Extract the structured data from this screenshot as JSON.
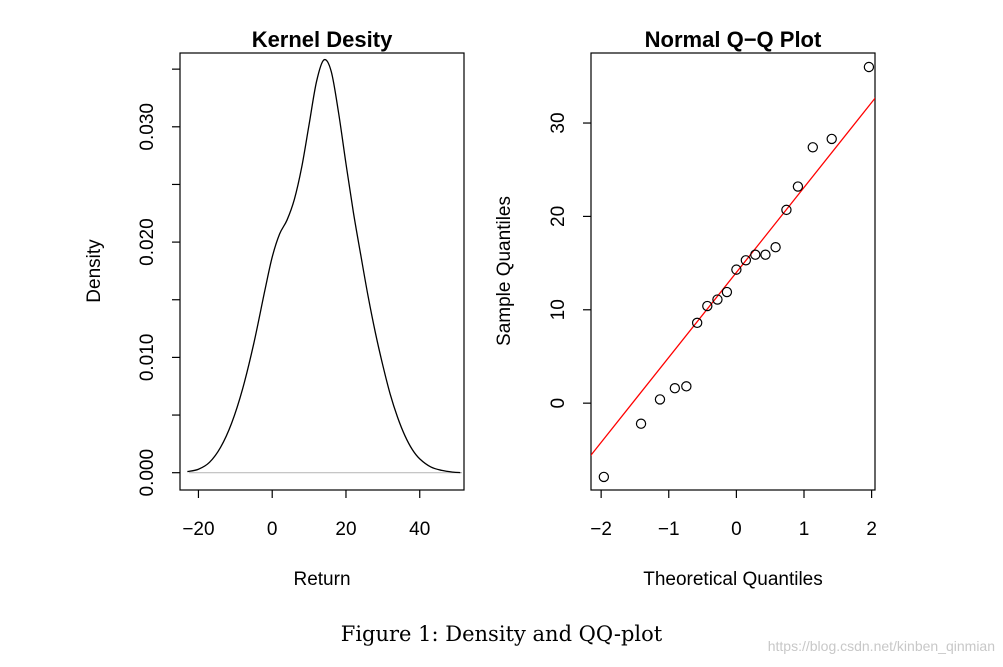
{
  "caption": "Figure 1: Density and QQ-plot",
  "watermark": "https://blog.csdn.net/kinben_qinmian",
  "colors": {
    "density_line": "#000000",
    "baseline": "#bebebe",
    "qq_line": "#ff0000",
    "points": "#000000"
  },
  "chart_data": [
    {
      "type": "line",
      "title": "Kernel Desity",
      "xlabel": "Return",
      "ylabel": "Density",
      "xlim": [
        -25,
        52
      ],
      "ylim": [
        -0.0015,
        0.0364
      ],
      "x_ticks": [
        -20,
        0,
        20,
        40
      ],
      "x_tick_labels": [
        "−20",
        "0",
        "20",
        "40"
      ],
      "y_ticks": [
        0.0,
        0.005,
        0.01,
        0.015,
        0.02,
        0.025,
        0.03,
        0.035
      ],
      "y_tick_labels": [
        "0.000",
        "",
        "0.010",
        "",
        "0.020",
        "",
        "0.030",
        ""
      ],
      "baseline": 0,
      "x": [
        -23,
        -20,
        -17,
        -14,
        -11,
        -8,
        -5,
        -2,
        0,
        2,
        4,
        6,
        8,
        10,
        12,
        14,
        16,
        18,
        20,
        22,
        24,
        26,
        28,
        30,
        32,
        34,
        36,
        38,
        40,
        43,
        46,
        49,
        51
      ],
      "y": [
        0.0001,
        0.0003,
        0.0009,
        0.0022,
        0.0043,
        0.0073,
        0.0112,
        0.0158,
        0.0187,
        0.0207,
        0.0219,
        0.0237,
        0.0265,
        0.0302,
        0.0339,
        0.0358,
        0.0348,
        0.0312,
        0.0268,
        0.0226,
        0.0189,
        0.0153,
        0.0121,
        0.0093,
        0.0068,
        0.0048,
        0.0032,
        0.002,
        0.0012,
        0.0005,
        0.0002,
        5e-05,
        1e-05
      ]
    },
    {
      "type": "scatter",
      "title": "Normal Q−Q Plot",
      "xlabel": "Theoretical Quantiles",
      "ylabel": "Sample Quantiles",
      "xlim": [
        -2.15,
        2.05
      ],
      "ylim": [
        -9.3,
        37.5
      ],
      "x_ticks": [
        -2,
        -1,
        0,
        1,
        2
      ],
      "x_tick_labels": [
        "−2",
        "−1",
        "0",
        "1",
        "2"
      ],
      "y_ticks": [
        0,
        10,
        20,
        30
      ],
      "y_tick_labels": [
        "0",
        "10",
        "20",
        "30"
      ],
      "points": [
        [
          -1.96,
          -7.9
        ],
        [
          -1.41,
          -2.2
        ],
        [
          -1.13,
          0.4
        ],
        [
          -0.91,
          1.6
        ],
        [
          -0.74,
          1.8
        ],
        [
          -0.58,
          8.6
        ],
        [
          -0.43,
          10.4
        ],
        [
          -0.28,
          11.1
        ],
        [
          -0.14,
          11.9
        ],
        [
          0.0,
          14.3
        ],
        [
          0.14,
          15.3
        ],
        [
          0.28,
          15.9
        ],
        [
          0.43,
          15.9
        ],
        [
          0.58,
          16.7
        ],
        [
          0.74,
          20.7
        ],
        [
          0.91,
          23.2
        ],
        [
          1.13,
          27.4
        ],
        [
          1.41,
          28.3
        ],
        [
          1.96,
          36.0
        ]
      ],
      "qq_line": {
        "intercept": 14.0,
        "slope": 9.1
      }
    }
  ]
}
